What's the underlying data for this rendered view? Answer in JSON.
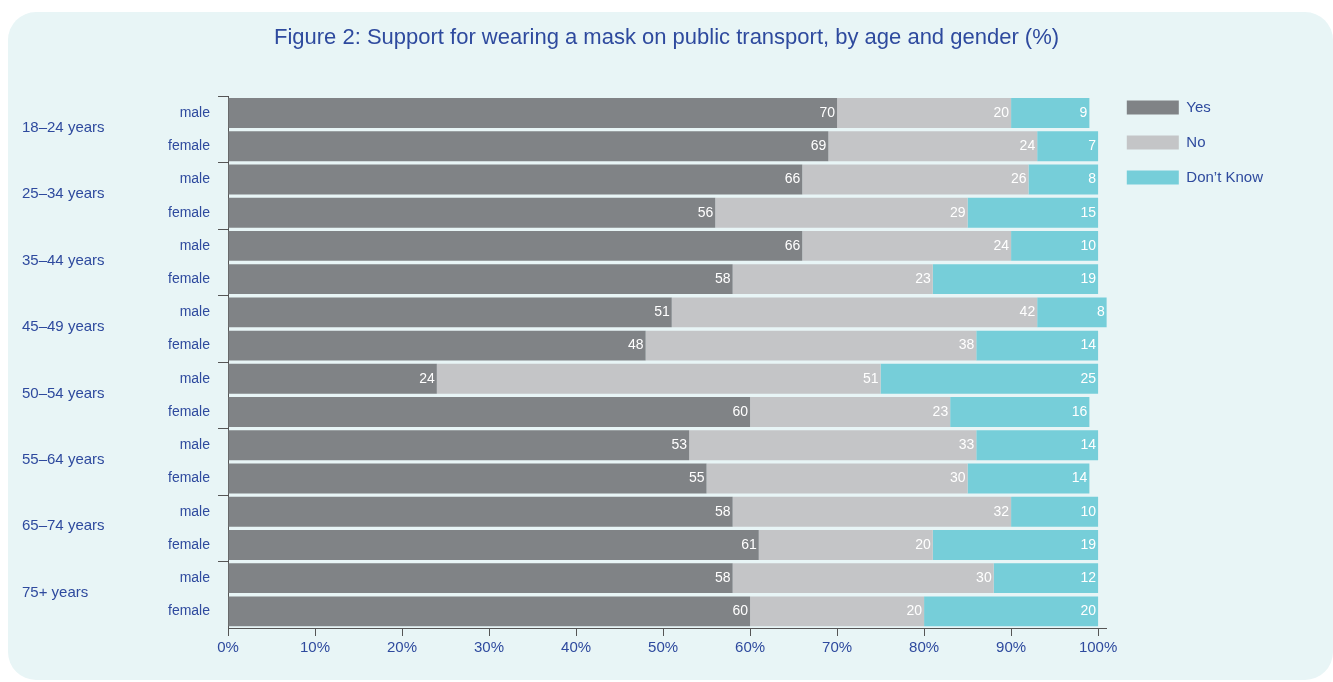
{
  "chart_data": {
    "type": "bar",
    "title": "Figure 2: Support for wearing a mask on public transport, by age and gender (%)",
    "orientation": "horizontal",
    "stacked": true,
    "data_labels": true,
    "legend": "right",
    "grid": false,
    "categories": [
      "male",
      "female",
      "male",
      "female",
      "male",
      "female",
      "male",
      "female",
      "male",
      "female",
      "male",
      "female",
      "male",
      "female",
      "male",
      "female"
    ],
    "annotations": [
      "18–24 years",
      "25–34 years",
      "35–44 years",
      "45–49 years",
      "50–54 years",
      "55–64 years",
      "65–74 years",
      "75+ years"
    ],
    "series": [
      {
        "name": "Yes",
        "color": "#808386",
        "values": [
          70,
          69,
          66,
          56,
          66,
          58,
          51,
          48,
          24,
          60,
          53,
          55,
          58,
          61,
          58,
          60
        ]
      },
      {
        "name": "No",
        "color": "#c4c5c7",
        "values": [
          20,
          24,
          26,
          29,
          24,
          23,
          42,
          38,
          51,
          23,
          33,
          30,
          32,
          20,
          30,
          20
        ]
      },
      {
        "name": "Don’t Know",
        "color": "#76ced9",
        "values": [
          9,
          7,
          8,
          15,
          10,
          19,
          8,
          14,
          25,
          16,
          14,
          14,
          10,
          19,
          12,
          20
        ]
      }
    ],
    "xlim": [
      0,
      101
    ],
    "xticks": [
      {
        "value": 0,
        "label": "0%"
      },
      {
        "value": 10,
        "label": "10%"
      },
      {
        "value": 20,
        "label": "20%"
      },
      {
        "value": 30,
        "label": "30%"
      },
      {
        "value": 40,
        "label": "40%"
      },
      {
        "value": 50,
        "label": "50%"
      },
      {
        "value": 60,
        "label": "60%"
      },
      {
        "value": 70,
        "label": "70%"
      },
      {
        "value": 80,
        "label": "80%"
      },
      {
        "value": 90,
        "label": "90%"
      },
      {
        "value": 100,
        "label": "100%"
      }
    ]
  }
}
